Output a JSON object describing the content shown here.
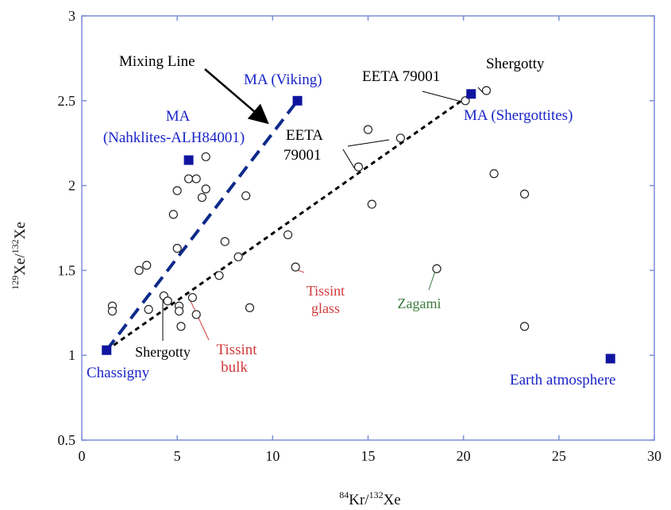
{
  "chart_data": {
    "type": "scatter",
    "title": "",
    "xlabel": {
      "sup": "84",
      "main": "Kr/",
      "sup2": "132",
      "tail": "Xe"
    },
    "ylabel": {
      "sup": "129",
      "main": "Xe/",
      "sup2": "132",
      "tail": "Xe"
    },
    "xlim": [
      0,
      30
    ],
    "ylim": [
      0.5,
      3
    ],
    "x_ticks": [
      0,
      5,
      10,
      15,
      20,
      25,
      30
    ],
    "y_ticks": [
      0.5,
      1,
      1.5,
      2,
      2.5,
      3
    ],
    "x_tick_labels": [
      "0",
      "5",
      "10",
      "15",
      "20",
      "25",
      "30"
    ],
    "y_tick_labels": [
      "0.5",
      "1",
      "1.5",
      "2",
      "2.5",
      "3"
    ],
    "grid": false,
    "open_points": [
      {
        "x": 1.6,
        "y": 1.29
      },
      {
        "x": 1.6,
        "y": 1.26
      },
      {
        "x": 3.0,
        "y": 1.5
      },
      {
        "x": 3.4,
        "y": 1.53
      },
      {
        "x": 3.5,
        "y": 1.27
      },
      {
        "x": 4.3,
        "y": 1.35
      },
      {
        "x": 4.5,
        "y": 1.32
      },
      {
        "x": 4.8,
        "y": 1.83
      },
      {
        "x": 5.0,
        "y": 1.97
      },
      {
        "x": 5.0,
        "y": 1.63
      },
      {
        "x": 5.1,
        "y": 1.29
      },
      {
        "x": 5.1,
        "y": 1.26
      },
      {
        "x": 5.2,
        "y": 1.17
      },
      {
        "x": 5.6,
        "y": 2.04
      },
      {
        "x": 5.8,
        "y": 1.34
      },
      {
        "x": 6.0,
        "y": 2.04
      },
      {
        "x": 6.0,
        "y": 1.24
      },
      {
        "x": 6.3,
        "y": 1.93
      },
      {
        "x": 6.5,
        "y": 1.98
      },
      {
        "x": 6.5,
        "y": 2.17
      },
      {
        "x": 7.2,
        "y": 1.47
      },
      {
        "x": 7.5,
        "y": 1.67
      },
      {
        "x": 8.2,
        "y": 1.58
      },
      {
        "x": 8.6,
        "y": 1.94
      },
      {
        "x": 8.8,
        "y": 1.28
      },
      {
        "x": 10.8,
        "y": 1.71
      },
      {
        "x": 11.2,
        "y": 1.52
      },
      {
        "x": 14.5,
        "y": 2.11
      },
      {
        "x": 15.0,
        "y": 2.33
      },
      {
        "x": 15.2,
        "y": 1.89
      },
      {
        "x": 16.7,
        "y": 2.28
      },
      {
        "x": 18.6,
        "y": 1.51
      },
      {
        "x": 20.1,
        "y": 2.5
      },
      {
        "x": 21.2,
        "y": 2.56
      },
      {
        "x": 21.6,
        "y": 2.07
      },
      {
        "x": 23.2,
        "y": 1.95
      },
      {
        "x": 23.2,
        "y": 1.17
      }
    ],
    "endmembers": [
      {
        "label": "Chassigny",
        "x": 1.3,
        "y": 1.03
      },
      {
        "label": "MA (Nahklites-ALH84001)",
        "x": 5.6,
        "y": 2.15
      },
      {
        "label": "MA (Viking)",
        "x": 11.3,
        "y": 2.5
      },
      {
        "label": "MA (Shergottites)",
        "x": 20.4,
        "y": 2.54
      },
      {
        "label": "Earth atmosphere",
        "x": 27.7,
        "y": 0.98
      }
    ],
    "mixing_lines": [
      {
        "from": [
          1.3,
          1.03
        ],
        "to": [
          11.3,
          2.5
        ],
        "style": "dashed-blue"
      },
      {
        "from": [
          1.3,
          1.03
        ],
        "to": [
          20.4,
          2.54
        ],
        "style": "dotted-black"
      }
    ],
    "colors": {
      "endmember": "#0f159e",
      "blue_text": "#1a24c8",
      "mixing_blue": "#0d2a8a",
      "red_text": "#d03a3a",
      "green_text": "#3c7a3c",
      "axis": "#7b8fd6",
      "black": "#000000"
    },
    "annotations": {
      "mixing_line": "Mixing Line",
      "ma_viking": "MA (Viking)",
      "ma_nak_1": "MA",
      "ma_nak_2": "(Nahklites-ALH84001)",
      "eeta_top": "EETA 79001",
      "shergotty_top": "Shergotty",
      "ma_sherg": "MA (Shergottites)",
      "eeta_mid_1": "EETA",
      "eeta_mid_2": "79001",
      "tissint_glass_1": "Tissint",
      "tissint_glass_2": "glass",
      "zagami": "Zagami",
      "shergotty_bottom": "Shergotty",
      "tissint_bulk_1": "Tissint",
      "tissint_bulk_2": "bulk",
      "chassigny": "Chassigny",
      "earth_atm": "Earth atmosphere"
    }
  }
}
